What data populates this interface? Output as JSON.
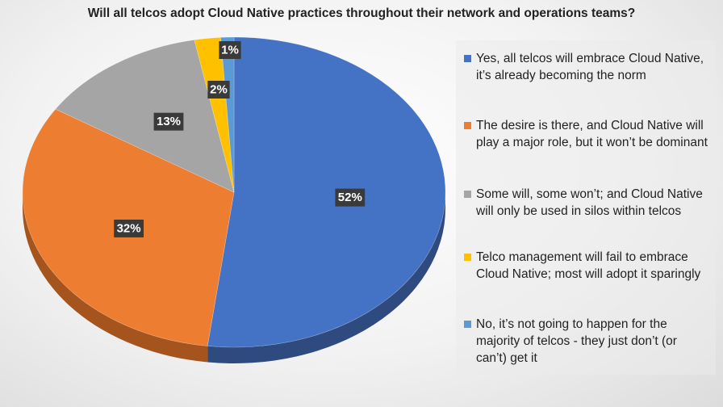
{
  "chart_data": {
    "type": "pie",
    "title": "Will all telcos adopt Cloud Native practices throughout their network and operations teams?",
    "legend_position": "right",
    "slices": [
      {
        "label": "Yes, all telcos will embrace Cloud Native, it’s already becoming the norm",
        "value": 52,
        "value_label": "52%",
        "color": "#4472C4",
        "side_color": "#2E4A7F"
      },
      {
        "label": "The desire is there, and Cloud Native will play a major role, but it won’t be dominant",
        "value": 32,
        "value_label": "32%",
        "color": "#ED7D31",
        "side_color": "#A5541E"
      },
      {
        "label": "Some will, some won’t; and Cloud Native will only be used in silos within telcos",
        "value": 13,
        "value_label": "13%",
        "color": "#A5A5A5",
        "side_color": "#6E6E6E"
      },
      {
        "label": "Telco management will fail to embrace Cloud Native; most will adopt it sparingly",
        "value": 2,
        "value_label": "2%",
        "color": "#FFC000",
        "side_color": "#B08500"
      },
      {
        "label": "No, it’s not going to happen for the majority of telcos - they just don’t (or can’t) get it",
        "value": 1,
        "value_label": "1%",
        "color": "#5B9BD5",
        "side_color": "#3C6C96"
      }
    ]
  }
}
